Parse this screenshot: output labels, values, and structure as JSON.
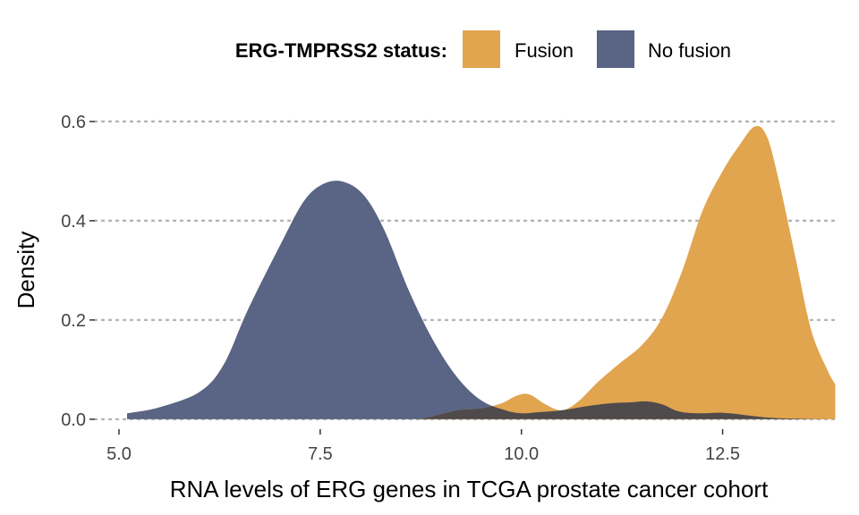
{
  "chart_data": {
    "type": "area",
    "subtype": "density",
    "xlabel": "RNA levels of ERG genes in TCGA prostate cancer cohort",
    "ylabel": "Density",
    "xlim": [
      4.7,
      13.95
    ],
    "ylim": [
      -0.02,
      0.625
    ],
    "x_ticks": [
      5.0,
      7.5,
      10.0,
      12.5
    ],
    "x_tick_labels": [
      "5.0",
      "7.5",
      "10.0",
      "12.5"
    ],
    "y_ticks": [
      0.0,
      0.2,
      0.4,
      0.6
    ],
    "y_tick_labels": [
      "0.0",
      "0.2",
      "0.4",
      "0.6"
    ],
    "grid": "horizontal dotted",
    "legend": {
      "position": "top",
      "title": "ERG-TMPRSS2 status:",
      "entries": [
        {
          "label": "Fusion",
          "color": "#E1A54F"
        },
        {
          "label": "No fusion",
          "color": "#5A6484"
        }
      ]
    },
    "overlap_color": "#4F4A4B",
    "series": [
      {
        "name": "No fusion",
        "color": "#5A6484",
        "points": [
          [
            5.1,
            0.012
          ],
          [
            5.5,
            0.024
          ],
          [
            6.0,
            0.055
          ],
          [
            6.3,
            0.11
          ],
          [
            6.6,
            0.22
          ],
          [
            7.0,
            0.35
          ],
          [
            7.3,
            0.44
          ],
          [
            7.55,
            0.475
          ],
          [
            7.8,
            0.478
          ],
          [
            8.05,
            0.45
          ],
          [
            8.3,
            0.38
          ],
          [
            8.6,
            0.26
          ],
          [
            8.9,
            0.16
          ],
          [
            9.2,
            0.085
          ],
          [
            9.5,
            0.038
          ],
          [
            9.8,
            0.018
          ],
          [
            10.0,
            0.012
          ],
          [
            10.2,
            0.014
          ],
          [
            10.5,
            0.018
          ],
          [
            10.8,
            0.026
          ],
          [
            11.1,
            0.032
          ],
          [
            11.35,
            0.034
          ],
          [
            11.55,
            0.036
          ],
          [
            11.75,
            0.03
          ],
          [
            11.95,
            0.016
          ],
          [
            12.2,
            0.012
          ],
          [
            12.5,
            0.013
          ],
          [
            12.8,
            0.008
          ],
          [
            13.1,
            0.003
          ],
          [
            13.5,
            0.001
          ],
          [
            13.9,
            0.0
          ]
        ]
      },
      {
        "name": "Fusion",
        "color": "#E1A54F",
        "points": [
          [
            8.7,
            0.0
          ],
          [
            8.9,
            0.006
          ],
          [
            9.2,
            0.018
          ],
          [
            9.5,
            0.022
          ],
          [
            9.75,
            0.032
          ],
          [
            9.95,
            0.048
          ],
          [
            10.1,
            0.05
          ],
          [
            10.3,
            0.03
          ],
          [
            10.5,
            0.018
          ],
          [
            10.7,
            0.035
          ],
          [
            10.95,
            0.075
          ],
          [
            11.2,
            0.11
          ],
          [
            11.5,
            0.15
          ],
          [
            11.75,
            0.205
          ],
          [
            12.0,
            0.3
          ],
          [
            12.25,
            0.42
          ],
          [
            12.5,
            0.5
          ],
          [
            12.7,
            0.55
          ],
          [
            12.9,
            0.59
          ],
          [
            13.05,
            0.57
          ],
          [
            13.2,
            0.48
          ],
          [
            13.4,
            0.33
          ],
          [
            13.6,
            0.18
          ],
          [
            13.8,
            0.1
          ],
          [
            13.9,
            0.07
          ]
        ]
      }
    ]
  }
}
